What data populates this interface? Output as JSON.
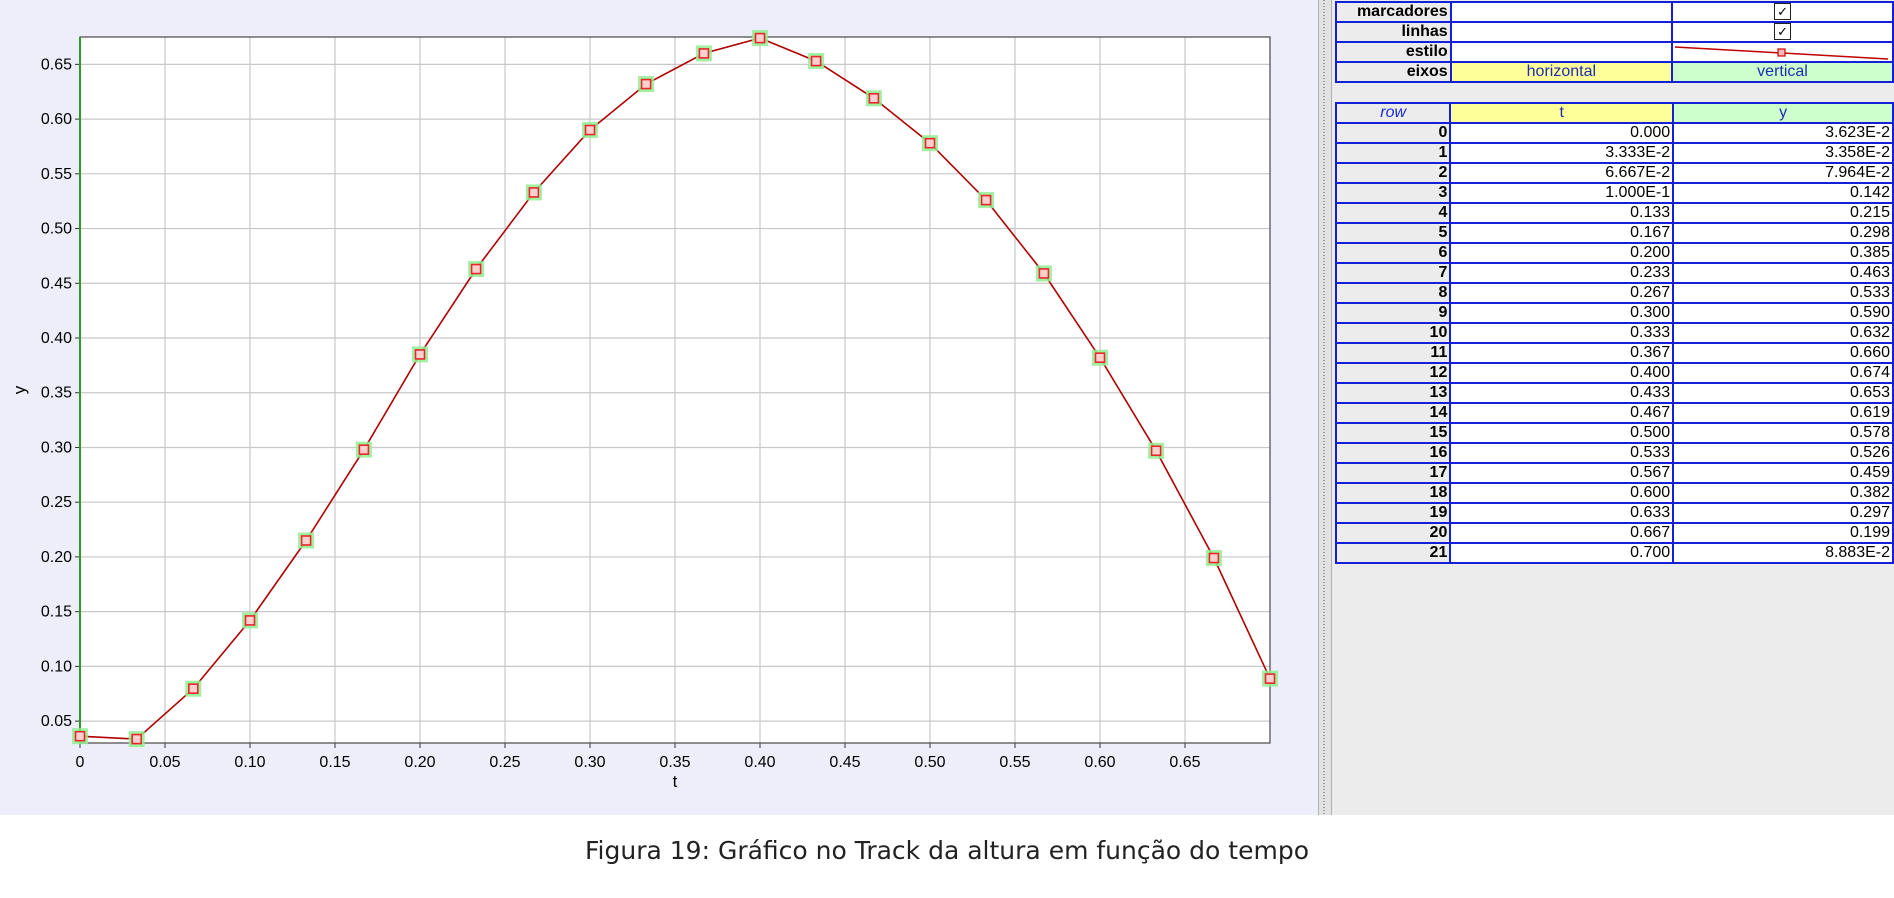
{
  "chart_data": {
    "type": "line",
    "xlabel": "t",
    "ylabel": "y",
    "xlim": [
      0,
      0.7
    ],
    "ylim": [
      0.03,
      0.675
    ],
    "x_ticks": [
      "0",
      "0.05",
      "0.10",
      "0.15",
      "0.20",
      "0.25",
      "0.30",
      "0.35",
      "0.40",
      "0.45",
      "0.50",
      "0.55",
      "0.60",
      "0.65"
    ],
    "y_ticks": [
      "0.05",
      "0.10",
      "0.15",
      "0.20",
      "0.25",
      "0.30",
      "0.35",
      "0.40",
      "0.45",
      "0.50",
      "0.55",
      "0.60",
      "0.65"
    ],
    "grid": true,
    "markers": true,
    "lines": true,
    "line_color": "#b00000",
    "marker_color": "#e8262b",
    "marker_highlight_color": "#90ee90",
    "x": [
      0,
      0.03333,
      0.06667,
      0.1,
      0.133,
      0.167,
      0.2,
      0.233,
      0.267,
      0.3,
      0.333,
      0.367,
      0.4,
      0.433,
      0.467,
      0.5,
      0.533,
      0.567,
      0.6,
      0.633,
      0.667,
      0.7
    ],
    "y": [
      0.03623,
      0.03358,
      0.07964,
      0.142,
      0.215,
      0.298,
      0.385,
      0.463,
      0.533,
      0.59,
      0.632,
      0.66,
      0.674,
      0.653,
      0.619,
      0.578,
      0.526,
      0.459,
      0.382,
      0.297,
      0.199,
      0.08883
    ]
  },
  "properties": [
    {
      "label": "marcadores",
      "check": "✓"
    },
    {
      "label": "linhas",
      "check": "✓"
    },
    {
      "label": "estilo"
    },
    {
      "label": "eixos",
      "horizontal": "horizontal",
      "vertical": "vertical"
    }
  ],
  "table": {
    "headers": {
      "row": "row",
      "t": "t",
      "y": "y"
    },
    "rows": [
      [
        "0",
        "0.000",
        "3.623E-2"
      ],
      [
        "1",
        "3.333E-2",
        "3.358E-2"
      ],
      [
        "2",
        "6.667E-2",
        "7.964E-2"
      ],
      [
        "3",
        "1.000E-1",
        "0.142"
      ],
      [
        "4",
        "0.133",
        "0.215"
      ],
      [
        "5",
        "0.167",
        "0.298"
      ],
      [
        "6",
        "0.200",
        "0.385"
      ],
      [
        "7",
        "0.233",
        "0.463"
      ],
      [
        "8",
        "0.267",
        "0.533"
      ],
      [
        "9",
        "0.300",
        "0.590"
      ],
      [
        "10",
        "0.333",
        "0.632"
      ],
      [
        "11",
        "0.367",
        "0.660"
      ],
      [
        "12",
        "0.400",
        "0.674"
      ],
      [
        "13",
        "0.433",
        "0.653"
      ],
      [
        "14",
        "0.467",
        "0.619"
      ],
      [
        "15",
        "0.500",
        "0.578"
      ],
      [
        "16",
        "0.533",
        "0.526"
      ],
      [
        "17",
        "0.567",
        "0.459"
      ],
      [
        "18",
        "0.600",
        "0.382"
      ],
      [
        "19",
        "0.633",
        "0.297"
      ],
      [
        "20",
        "0.667",
        "0.199"
      ],
      [
        "21",
        "0.700",
        "8.883E-2"
      ]
    ]
  },
  "caption": "Figura 19: Gráfico no Track da altura em função do tempo"
}
